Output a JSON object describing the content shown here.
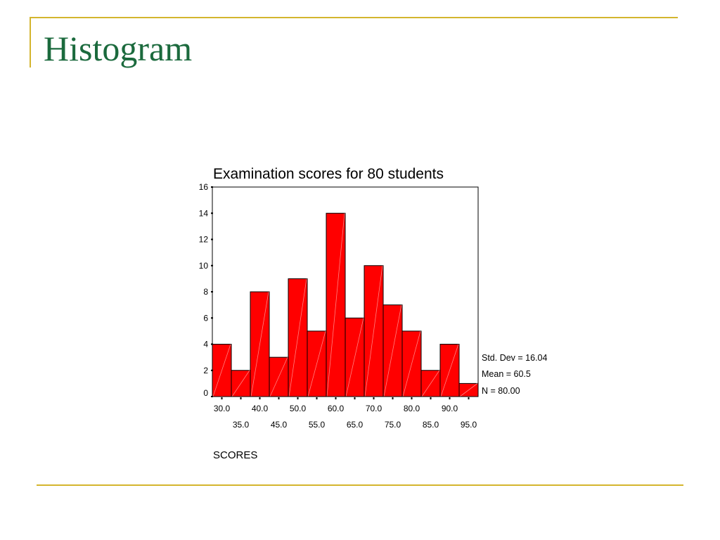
{
  "slide": {
    "title": "Histogram"
  },
  "colors": {
    "frame": "#d4b52e",
    "title": "#1b6a3d",
    "bar_fill": "#ff0000",
    "bar_stroke": "#000000"
  },
  "chart_data": {
    "type": "bar",
    "title": "Examination scores for 80 students",
    "xlabel": "SCORES",
    "ylabel": "",
    "categories": [
      "30.0",
      "35.0",
      "40.0",
      "45.0",
      "50.0",
      "55.0",
      "60.0",
      "65.0",
      "70.0",
      "75.0",
      "80.0",
      "85.0",
      "90.0",
      "95.0"
    ],
    "values": [
      4,
      2,
      8,
      3,
      9,
      5,
      14,
      6,
      10,
      7,
      5,
      2,
      4,
      1
    ],
    "ylim": [
      0,
      16
    ],
    "yticks": [
      0,
      2,
      4,
      6,
      8,
      10,
      12,
      14,
      16
    ],
    "grid": false,
    "stats": {
      "std_dev": "Std. Dev = 16.04",
      "mean": "Mean = 60.5",
      "n": "N = 80.00"
    }
  }
}
